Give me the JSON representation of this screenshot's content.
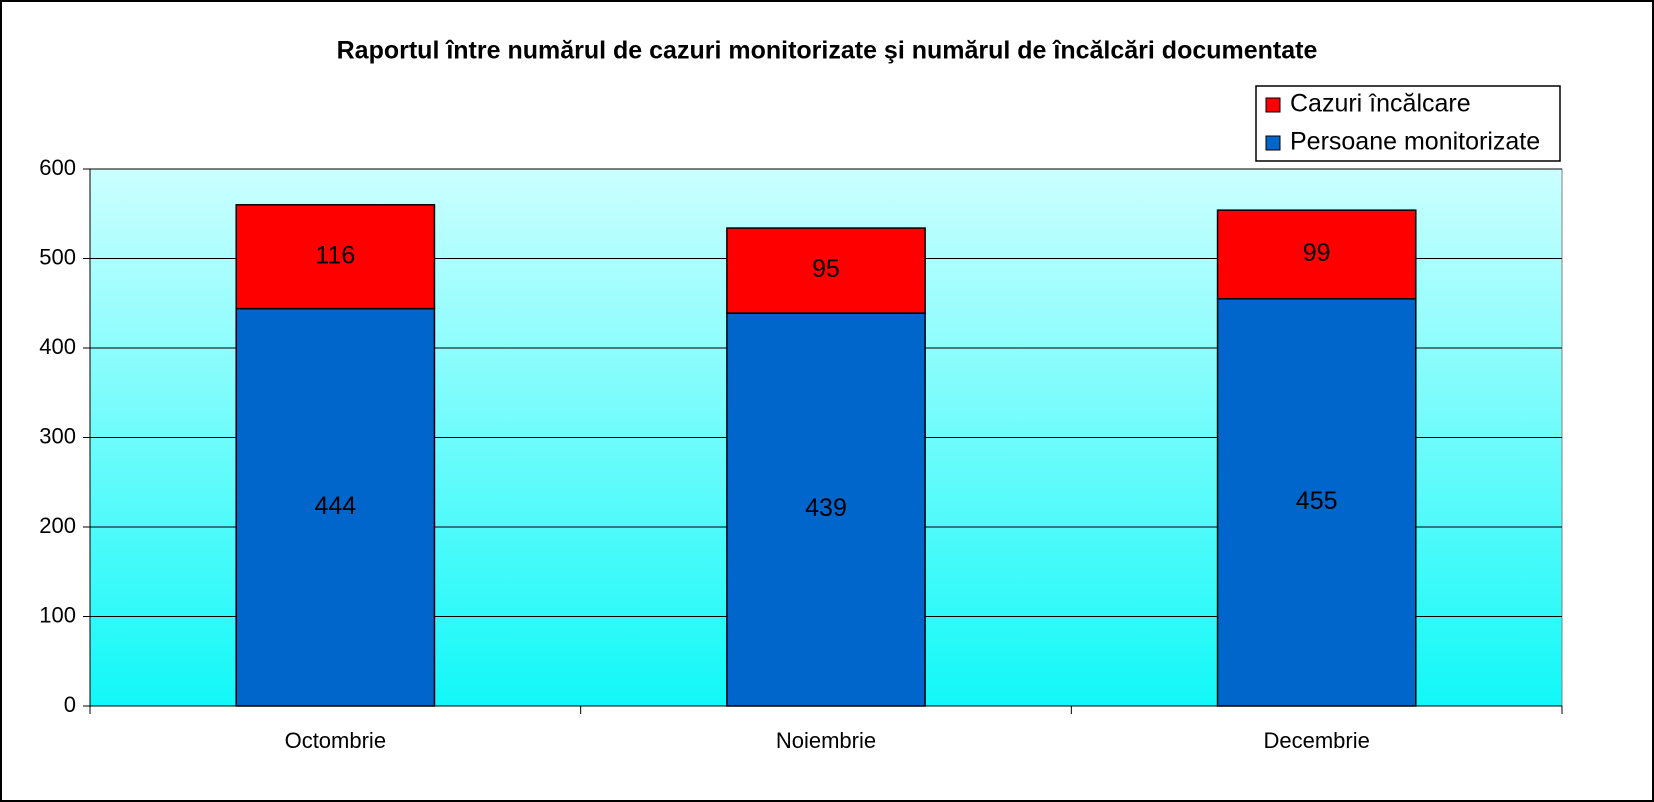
{
  "chart_data": {
    "type": "stacked_bar",
    "title": "Raportul între numărul de cazuri monitorizate şi numărul de încălcări documentate",
    "categories": [
      "Octombrie",
      "Noiembrie",
      "Decembrie"
    ],
    "series": [
      {
        "name": "Persoane monitorizate",
        "color": "#0066cc",
        "values": [
          444,
          439,
          455
        ]
      },
      {
        "name": "Cazuri încălcare",
        "color": "#ff0000",
        "values": [
          116,
          95,
          99
        ]
      }
    ],
    "ylim": [
      0,
      600
    ],
    "yticks": [
      0,
      100,
      200,
      300,
      400,
      500,
      600
    ],
    "grid": true,
    "legend": "top-right"
  }
}
